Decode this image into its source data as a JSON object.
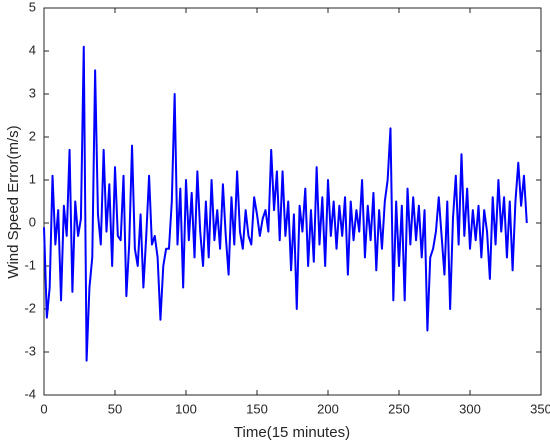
{
  "chart_data": {
    "type": "line",
    "xlabel": "Time(15 minutes)",
    "ylabel": "Wind Speed Error(m/s)",
    "xlim": [
      0,
      350
    ],
    "ylim": [
      -4,
      5
    ],
    "xticks": [
      0,
      50,
      100,
      150,
      200,
      250,
      300,
      350
    ],
    "yticks": [
      -4,
      -3,
      -2,
      -1,
      0,
      1,
      2,
      3,
      4,
      5
    ],
    "series": [
      {
        "color": "#0000ff",
        "x": [
          0,
          2,
          4,
          6,
          8,
          10,
          12,
          14,
          16,
          18,
          20,
          22,
          24,
          26,
          28,
          30,
          32,
          34,
          36,
          38,
          40,
          42,
          44,
          46,
          48,
          50,
          52,
          54,
          56,
          58,
          60,
          62,
          64,
          66,
          68,
          70,
          72,
          74,
          76,
          78,
          80,
          82,
          84,
          86,
          88,
          90,
          92,
          94,
          96,
          98,
          100,
          102,
          104,
          106,
          108,
          110,
          112,
          114,
          116,
          118,
          120,
          122,
          124,
          126,
          128,
          130,
          132,
          134,
          136,
          138,
          140,
          142,
          144,
          146,
          148,
          150,
          152,
          154,
          156,
          158,
          160,
          162,
          164,
          166,
          168,
          170,
          172,
          174,
          176,
          178,
          180,
          182,
          184,
          186,
          188,
          190,
          192,
          194,
          196,
          198,
          200,
          202,
          204,
          206,
          208,
          210,
          212,
          214,
          216,
          218,
          220,
          222,
          224,
          226,
          228,
          230,
          232,
          234,
          236,
          238,
          240,
          242,
          244,
          246,
          248,
          250,
          252,
          254,
          256,
          258,
          260,
          262,
          264,
          266,
          268,
          270,
          272,
          274,
          276,
          278,
          280,
          282,
          284,
          286,
          288,
          290,
          292,
          294,
          296,
          298,
          300,
          302,
          304,
          306,
          308,
          310,
          312,
          314,
          316,
          318,
          320,
          322,
          324,
          326,
          328,
          330,
          332,
          334,
          336,
          338,
          340
        ],
        "values": [
          -0.1,
          -2.2,
          -1.5,
          1.1,
          -0.5,
          0.3,
          -1.8,
          0.4,
          -0.3,
          1.7,
          -1.6,
          0.5,
          -0.3,
          0.1,
          4.1,
          -3.2,
          -1.5,
          -0.8,
          3.55,
          0.2,
          -0.5,
          1.7,
          -0.2,
          0.9,
          -1.0,
          1.3,
          -0.3,
          -0.4,
          1.1,
          -1.7,
          -0.5,
          1.8,
          -0.6,
          -1.0,
          0.2,
          -1.5,
          -0.3,
          1.1,
          -0.5,
          -0.3,
          -0.8,
          -2.25,
          -1.0,
          -0.6,
          -0.6,
          0.5,
          3.0,
          -0.5,
          0.8,
          -1.5,
          1.0,
          -0.4,
          0.7,
          -0.8,
          1.2,
          -0.2,
          -1.0,
          0.5,
          -0.8,
          1.0,
          -0.4,
          0.3,
          -0.6,
          0.9,
          -0.3,
          -1.2,
          0.6,
          -0.5,
          1.2,
          -0.2,
          -0.6,
          0.3,
          -0.3,
          -0.5,
          0.6,
          0.2,
          -0.3,
          0.1,
          0.3,
          -0.2,
          1.7,
          0.3,
          1.2,
          -0.4,
          1.2,
          -0.3,
          0.5,
          -1.1,
          0.2,
          -2.0,
          0.4,
          -0.2,
          0.8,
          -1.0,
          0.3,
          -0.9,
          1.3,
          -0.5,
          0.6,
          -1.0,
          1.0,
          -0.3,
          0.5,
          -0.6,
          0.4,
          -0.3,
          0.6,
          -1.2,
          0.5,
          -0.4,
          0.3,
          -0.2,
          1.0,
          -0.8,
          0.4,
          -0.4,
          0.7,
          -1.1,
          0.3,
          -0.6,
          0.5,
          1.0,
          2.2,
          -1.8,
          0.5,
          -1.0,
          0.4,
          -1.8,
          0.8,
          -0.5,
          0.6,
          -0.4,
          0.4,
          -0.8,
          0.3,
          -2.5,
          -0.8,
          -0.6,
          -0.2,
          0.6,
          -0.3,
          -1.2,
          0.5,
          -2.0,
          0.1,
          1.1,
          -0.5,
          1.6,
          -0.3,
          0.8,
          -0.6,
          0.3,
          -0.4,
          0.4,
          -0.8,
          0.3,
          -0.2,
          -1.3,
          0.6,
          -0.5,
          1.0,
          -0.2,
          0.6,
          -0.8,
          0.5,
          -1.1,
          0.5,
          1.4,
          0.4,
          1.1,
          0
        ]
      }
    ]
  }
}
